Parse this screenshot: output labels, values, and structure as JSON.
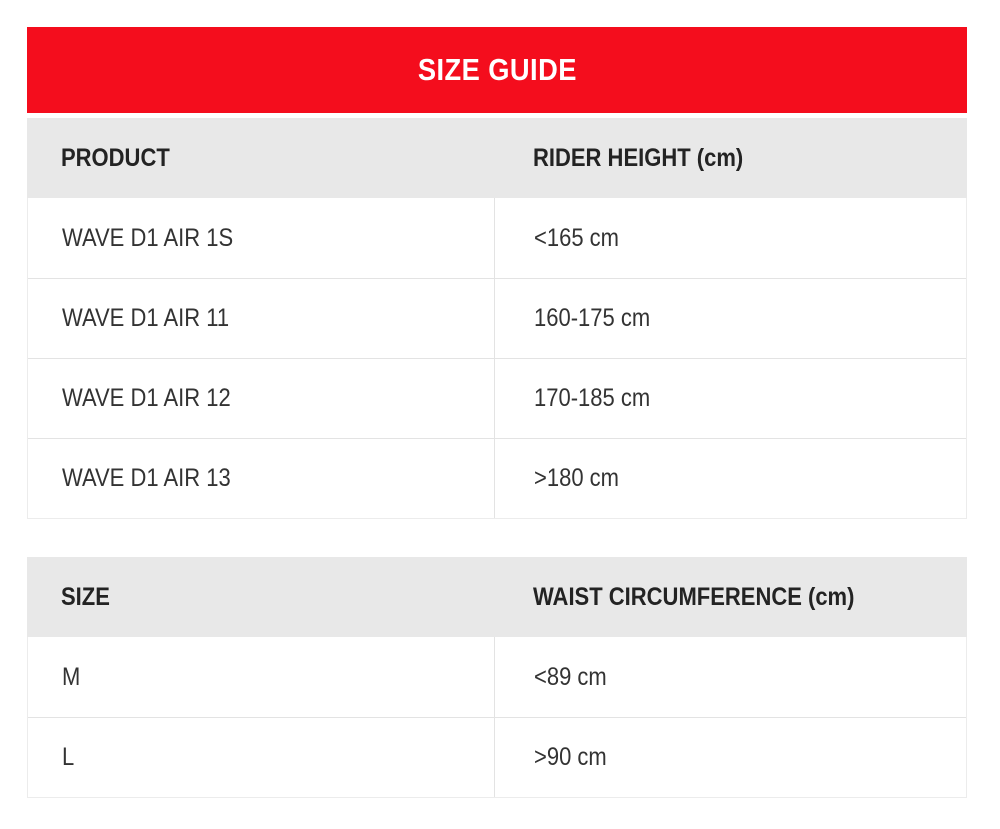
{
  "size_guide": {
    "title": "SIZE GUIDE",
    "colors": {
      "banner_bg": "#f40d1d",
      "banner_text": "#ffffff",
      "header_bg": "#e8e8e8",
      "body_text": "#333333",
      "header_text": "#232323",
      "border": "#e3e3e3"
    },
    "tables": [
      {
        "columns": [
          "PRODUCT",
          "RIDER HEIGHT (cm)"
        ],
        "rows": [
          [
            "WAVE D1 AIR 1S",
            "<165 cm"
          ],
          [
            "WAVE D1 AIR 11",
            "160-175 cm"
          ],
          [
            "WAVE D1 AIR 12",
            "170-185 cm"
          ],
          [
            "WAVE D1 AIR 13",
            ">180 cm"
          ]
        ]
      },
      {
        "columns": [
          "SIZE",
          "WAIST CIRCUMFERENCE (cm)"
        ],
        "rows": [
          [
            "M",
            "<89 cm"
          ],
          [
            "L",
            ">90 cm"
          ]
        ]
      }
    ]
  }
}
